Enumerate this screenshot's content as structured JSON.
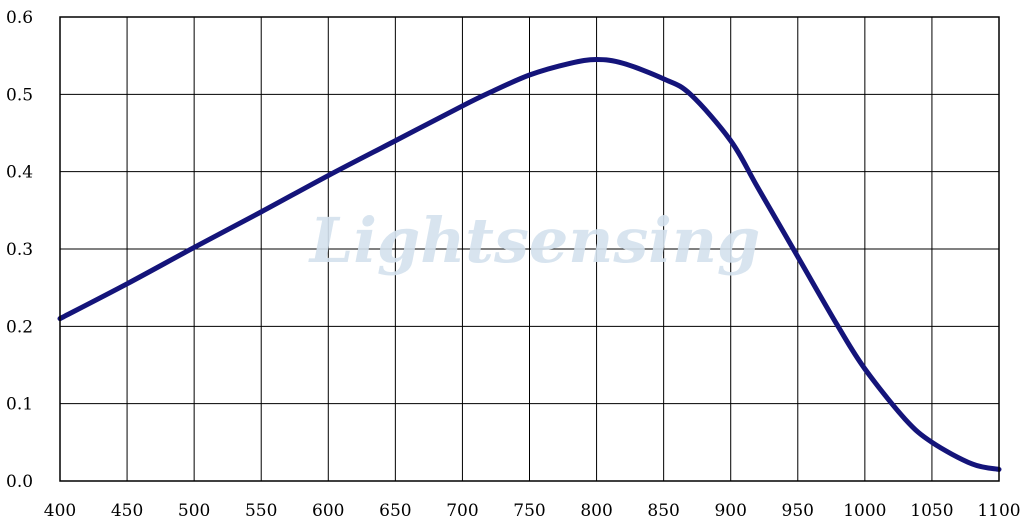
{
  "watermark": "Lightsensing",
  "chart_data": {
    "type": "line",
    "title": "",
    "xlabel": "",
    "ylabel": "",
    "xlim": [
      400,
      1100
    ],
    "ylim": [
      0.0,
      0.6
    ],
    "grid": true,
    "x_ticks": [
      "400",
      "450",
      "500",
      "550",
      "600",
      "650",
      "700",
      "750",
      "800",
      "850",
      "900",
      "950",
      "1000",
      "1050",
      "1100"
    ],
    "y_ticks": [
      "0.0",
      "0.1",
      "0.2",
      "0.3",
      "0.4",
      "0.5",
      "0.6"
    ],
    "series": [
      {
        "color": "#14147a",
        "x": [
          400,
          450,
          500,
          550,
          600,
          650,
          700,
          720,
          750,
          780,
          800,
          820,
          850,
          870,
          900,
          920,
          950,
          980,
          1000,
          1030,
          1050,
          1080,
          1100
        ],
        "y": [
          0.21,
          0.255,
          0.302,
          0.348,
          0.395,
          0.44,
          0.485,
          0.502,
          0.525,
          0.54,
          0.545,
          0.54,
          0.52,
          0.5,
          0.44,
          0.38,
          0.29,
          0.2,
          0.145,
          0.08,
          0.05,
          0.022,
          0.015
        ]
      }
    ]
  }
}
